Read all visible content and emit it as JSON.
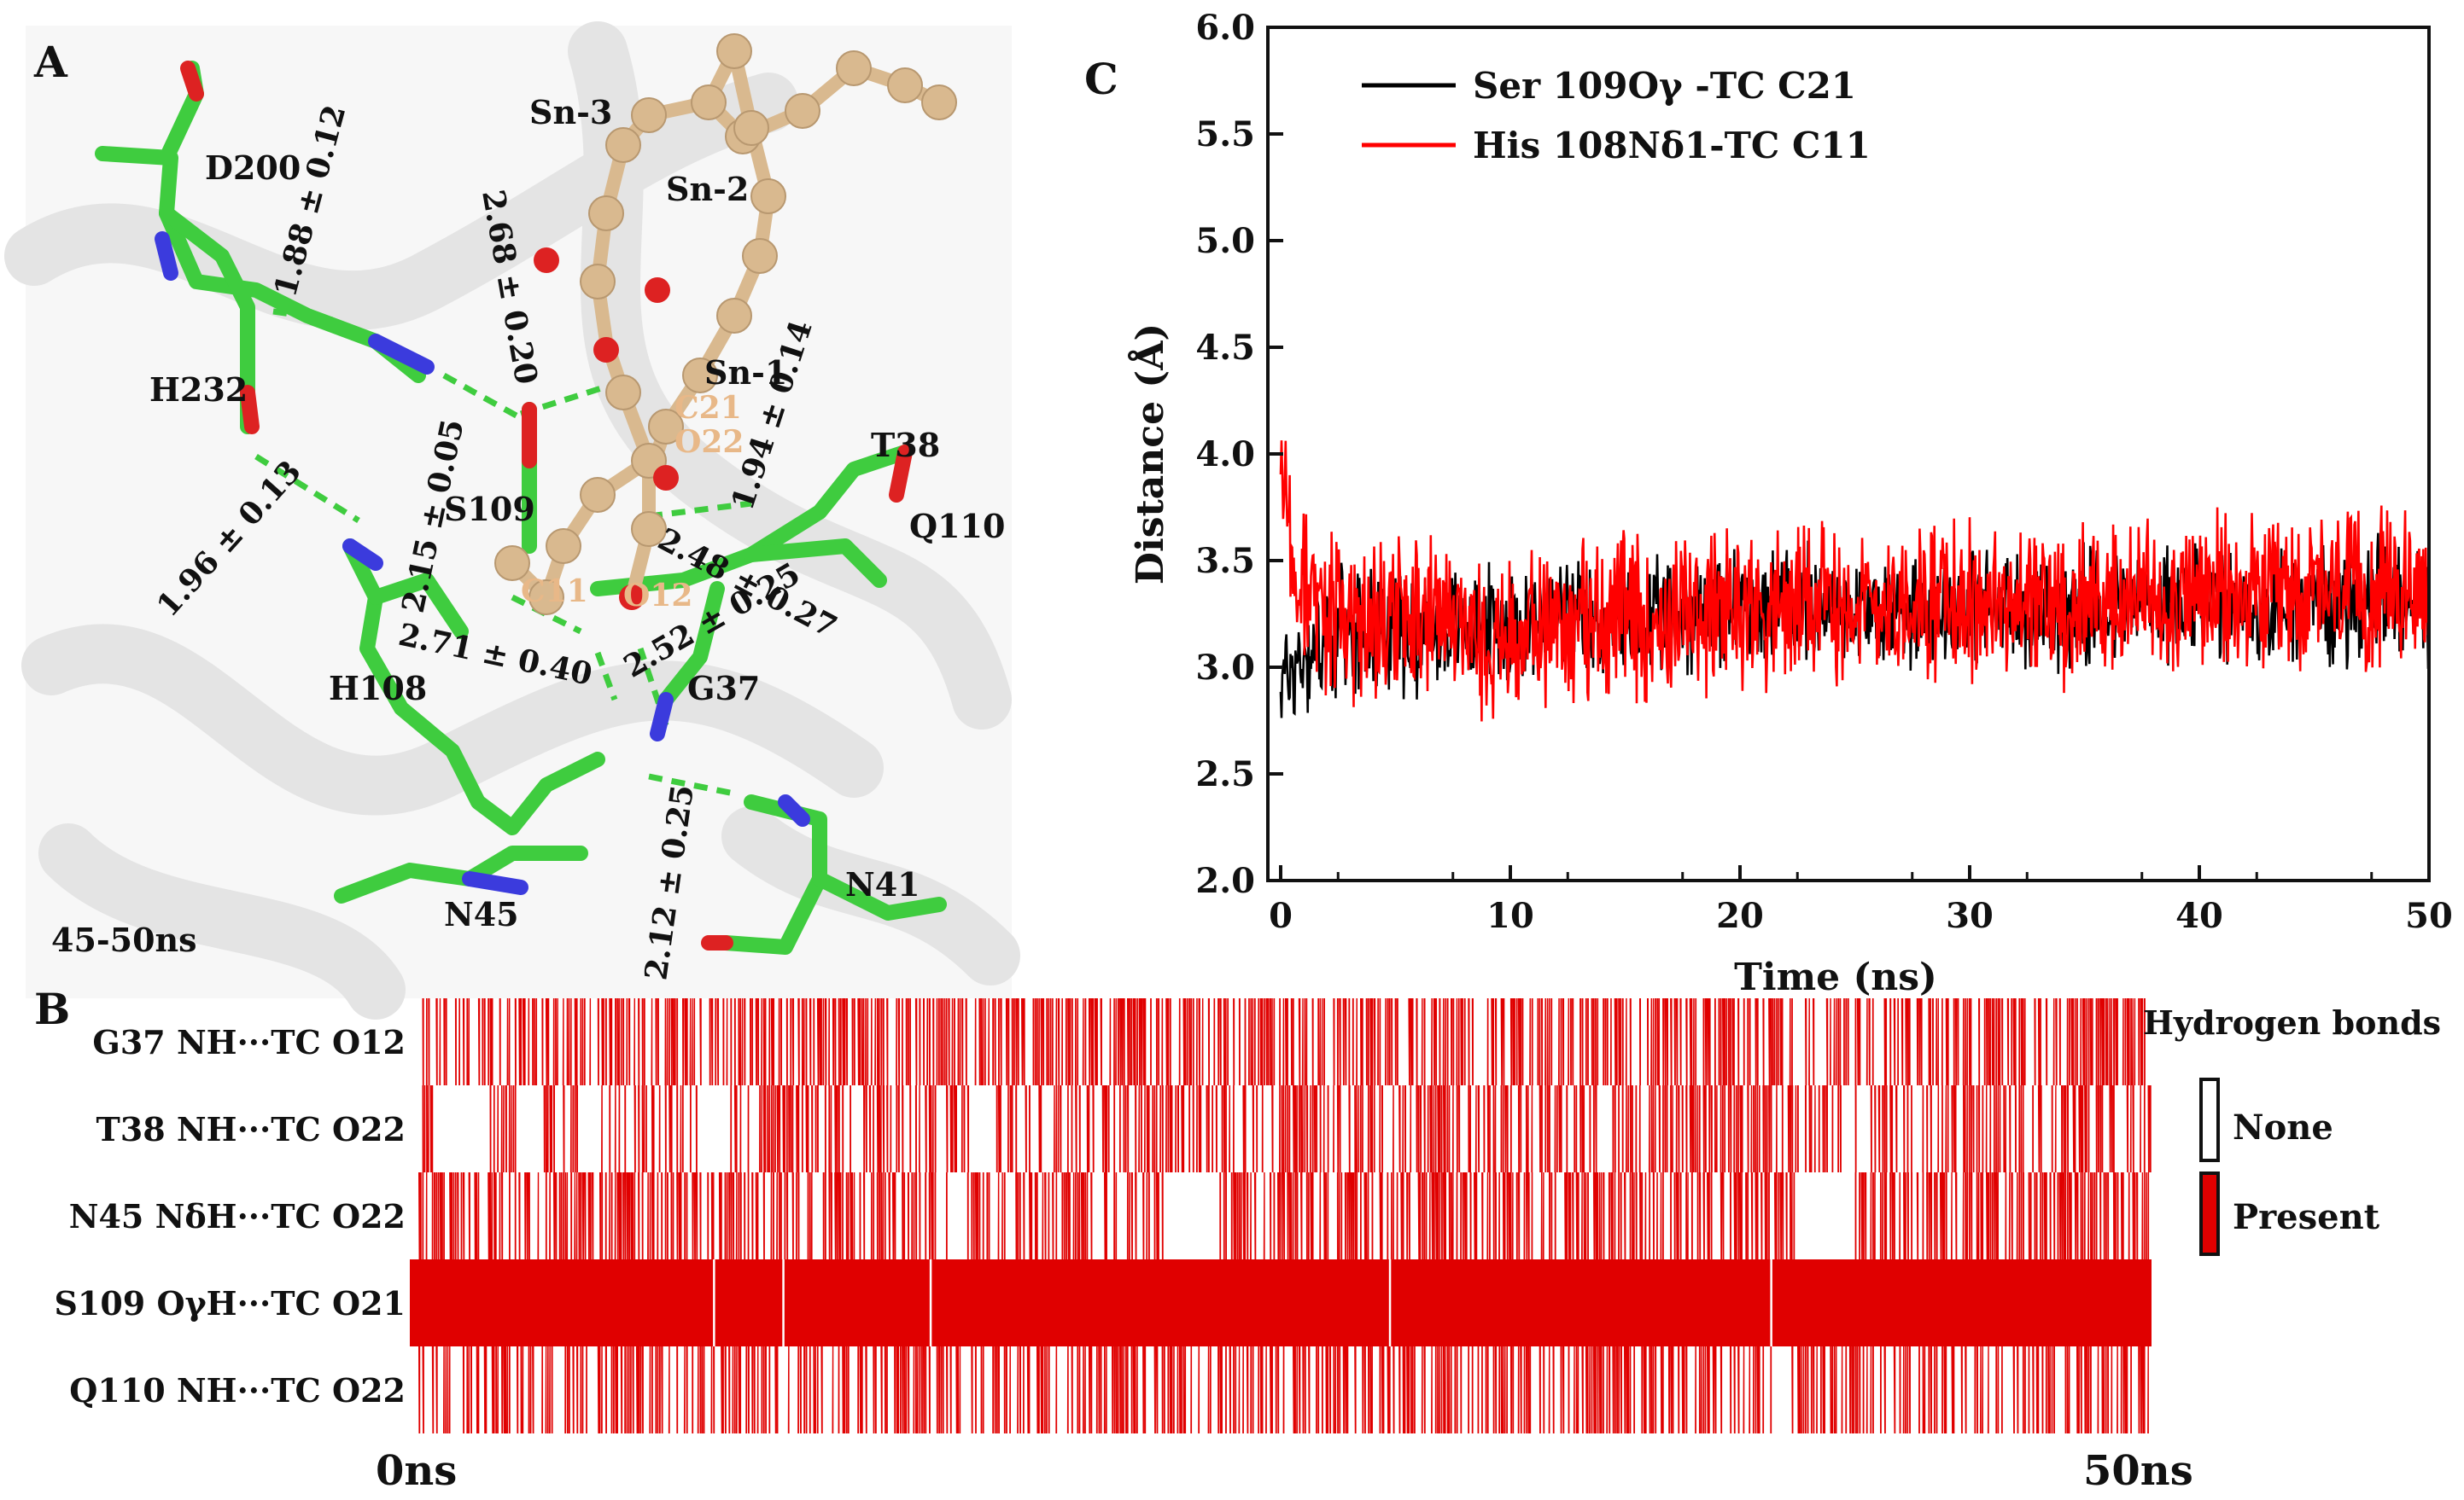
{
  "panel_labels": {
    "a": "A",
    "b": "B",
    "c": "C"
  },
  "panel_a": {
    "time_window": "45-50ns",
    "residues": [
      "D200",
      "H232",
      "S109",
      "H108",
      "G37",
      "T38",
      "Q110",
      "N45",
      "N41"
    ],
    "chain_labels": [
      "Sn-3",
      "Sn-2",
      "Sn-1"
    ],
    "atom_labels": [
      "C21",
      "O22",
      "C11",
      "O12"
    ],
    "distances": [
      "1.88 ± 0.12",
      "2.68 ± 0.20",
      "1.94 ± 0.14",
      "2.15 ± 0.05",
      "1.96 ± 0.13",
      "2.48 ± 0.27",
      "2.52 ± 0.25",
      "2.71 ± 0.40",
      "2.12 ± 0.25"
    ],
    "colors": {
      "carbon_protein": "#3fcc3f",
      "carbon_ligand": "#d9b98f",
      "oxygen": "#dd2222",
      "nitrogen": "#3b3bdd",
      "hbond": "#3fcc3f",
      "ribbon": "#e6e6e6",
      "atom_label": "#e8b888"
    }
  },
  "chart_data": [
    {
      "type": "line",
      "panel": "C",
      "xlabel": "Time (ns)",
      "ylabel": "Distance (Å)",
      "xlim": [
        0,
        50
      ],
      "ylim": [
        2.0,
        6.0
      ],
      "xticks": [
        "0",
        "10",
        "20",
        "30",
        "40",
        "50"
      ],
      "yticks": [
        "2.0",
        "2.5",
        "3.0",
        "3.5",
        "4.0",
        "4.5",
        "5.0",
        "5.5",
        "6.0"
      ],
      "legend_position": "top-left",
      "grid": false,
      "series": [
        {
          "name": "Ser 109Oγ  -TC C21",
          "color": "#000000",
          "x": [
            0,
            2,
            4,
            6,
            8,
            10,
            12,
            14,
            16,
            18,
            20,
            22,
            24,
            26,
            28,
            30,
            32,
            34,
            36,
            38,
            40,
            42,
            44,
            46,
            48,
            50
          ],
          "y": [
            2.95,
            3.15,
            3.2,
            3.15,
            3.2,
            3.2,
            3.22,
            3.18,
            3.2,
            3.25,
            3.3,
            3.28,
            3.3,
            3.25,
            3.3,
            3.3,
            3.25,
            3.28,
            3.28,
            3.3,
            3.3,
            3.25,
            3.3,
            3.3,
            3.32,
            3.3
          ],
          "spread": 0.22
        },
        {
          "name": "His 108Nδ1-TC C11",
          "color": "#ff0000",
          "x": [
            0,
            2,
            4,
            6,
            8,
            10,
            12,
            14,
            16,
            18,
            20,
            22,
            24,
            26,
            28,
            30,
            32,
            34,
            36,
            38,
            40,
            42,
            44,
            46,
            48,
            50
          ],
          "y": [
            3.55,
            3.25,
            3.2,
            3.2,
            3.2,
            3.15,
            3.22,
            3.25,
            3.22,
            3.25,
            3.3,
            3.28,
            3.32,
            3.3,
            3.32,
            3.3,
            3.28,
            3.3,
            3.3,
            3.32,
            3.35,
            3.3,
            3.35,
            3.35,
            3.35,
            3.4
          ],
          "spread": 0.3
        }
      ]
    },
    {
      "type": "heatmap",
      "panel": "B",
      "x_start_label": "0ns",
      "x_end_label": "50ns",
      "xlim": [
        0,
        50
      ],
      "legend_title": "Hydrogen bonds",
      "legend": [
        {
          "label": "None",
          "color": "#ffffff"
        },
        {
          "label": "Present",
          "color": "#e00000"
        }
      ],
      "rows": [
        {
          "label": "G37 NH···TC O12",
          "occupancy": 0.58,
          "gaps": []
        },
        {
          "label": "T38 NH···TC O22",
          "occupancy": 0.55,
          "gaps": [
            [
              0.4,
              2.0
            ],
            [
              2.8,
              3.5
            ],
            [
              4.6,
              5.2
            ],
            [
              8.1,
              8.9
            ],
            [
              15.9,
              16.5
            ]
          ]
        },
        {
          "label": "N45 NδH···TC O22",
          "occupancy": 0.6,
          "gaps": [
            [
              15.3,
              15.8
            ],
            [
              21.5,
              23.1
            ],
            [
              39.7,
              41.4
            ]
          ]
        },
        {
          "label": "S109 OγH···TC O21",
          "occupancy": 0.985,
          "gaps": []
        },
        {
          "label": "Q110 NH···TC O22",
          "occupancy": 0.55,
          "gaps": []
        }
      ]
    }
  ]
}
